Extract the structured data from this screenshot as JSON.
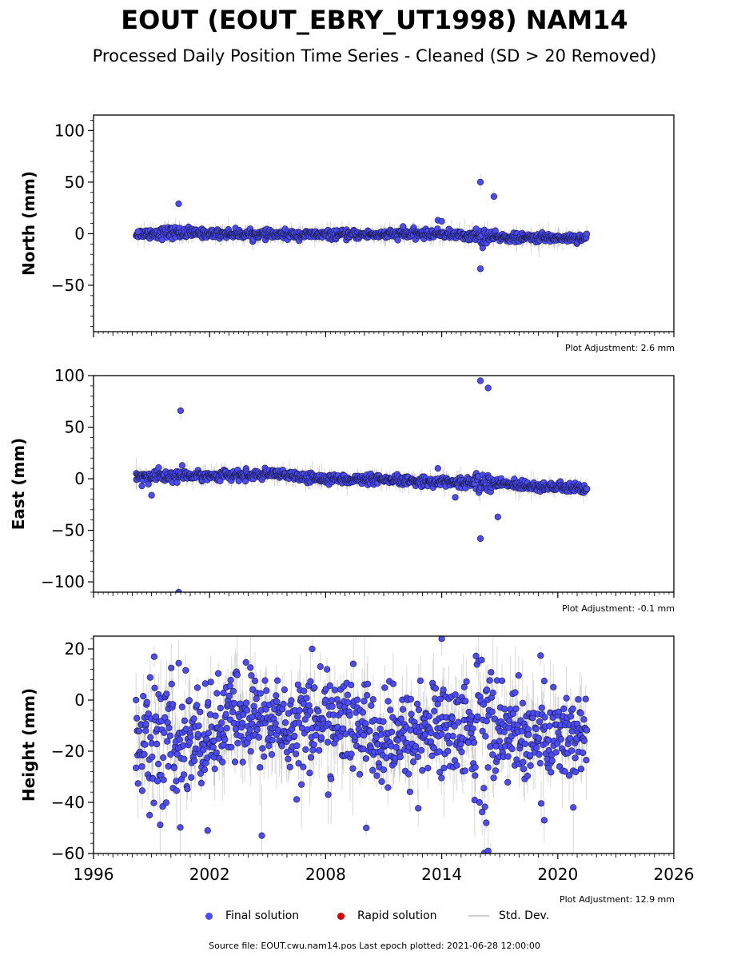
{
  "title": "EOUT (EOUT_EBRY_UT1998) NAM14",
  "subtitle": "Processed Daily Position Time Series - Cleaned (SD > 20 Removed)",
  "x_ticks": [
    "1996",
    "2002",
    "2008",
    "2014",
    "2020",
    "2026"
  ],
  "legend": {
    "final": "Final solution",
    "rapid": "Rapid solution",
    "sd": "Std. Dev."
  },
  "colors": {
    "final": "#4b4bfa",
    "rapid": "#dd0000",
    "sd": "#cfcfcf"
  },
  "source": "Source file: EOUT.cwu.nam14.pos  Last epoch plotted: 2021-06-28 12:00:00",
  "chart_data": [
    {
      "type": "scatter",
      "panel": "north",
      "ylabel": "North (mm)",
      "xlim": [
        1996,
        2026
      ],
      "ylim": [
        -95,
        115
      ],
      "yticks": [
        100,
        50,
        0,
        -50
      ],
      "adjustment": "Plot Adjustment: 2.6 mm",
      "grid": false,
      "profile": [
        [
          1998.2,
          0
        ],
        [
          2000,
          1
        ],
        [
          2005,
          -1
        ],
        [
          2010,
          -1
        ],
        [
          2014,
          0
        ],
        [
          2016,
          -3
        ],
        [
          2018,
          -4
        ],
        [
          2021.5,
          -4
        ]
      ],
      "noise": 2.0,
      "sd_noise": 4,
      "outliers": [
        [
          1998.3,
          2
        ],
        [
          2000.4,
          29
        ],
        [
          2016.0,
          50
        ],
        [
          2016.7,
          36
        ],
        [
          2016.0,
          -34
        ],
        [
          2013.8,
          13
        ],
        [
          2014.0,
          12
        ],
        [
          2012.0,
          7
        ]
      ]
    },
    {
      "type": "scatter",
      "panel": "east",
      "ylabel": "East (mm)",
      "xlim": [
        1996,
        2026
      ],
      "ylim": [
        -110,
        100
      ],
      "yticks": [
        100,
        50,
        0,
        -50,
        -100
      ],
      "adjustment": "Plot Adjustment: -0.1 mm",
      "grid": false,
      "profile": [
        [
          1998.2,
          2
        ],
        [
          2002,
          3
        ],
        [
          2005.5,
          4
        ],
        [
          2007,
          1
        ],
        [
          2010,
          -1
        ],
        [
          2014,
          -3
        ],
        [
          2016,
          -4
        ],
        [
          2018,
          -6
        ],
        [
          2021.5,
          -10
        ]
      ],
      "noise": 2.2,
      "sd_noise": 4,
      "outliers": [
        [
          2000.5,
          66
        ],
        [
          2000.4,
          -110
        ],
        [
          2016.0,
          95
        ],
        [
          2016.4,
          88
        ],
        [
          2016.0,
          -58
        ],
        [
          2016.9,
          -37
        ],
        [
          1999.0,
          -16
        ],
        [
          2014.7,
          -18
        ],
        [
          2013.8,
          10
        ],
        [
          1998.5,
          -7
        ]
      ]
    },
    {
      "type": "scatter",
      "panel": "height",
      "ylabel": "Height (mm)",
      "xlim": [
        1996,
        2026
      ],
      "ylim": [
        -60,
        25
      ],
      "yticks": [
        20,
        0,
        -20,
        -40,
        -60
      ],
      "adjustment": "Plot Adjustment: 12.9 mm",
      "grid": false,
      "profile": [
        [
          1998.2,
          -14
        ],
        [
          2000,
          -18
        ],
        [
          2002,
          -14
        ],
        [
          2003.5,
          -6
        ],
        [
          2006,
          -10
        ],
        [
          2008,
          -8
        ],
        [
          2010,
          -10
        ],
        [
          2011,
          -18
        ],
        [
          2013,
          -12
        ],
        [
          2016,
          -10
        ],
        [
          2018,
          -14
        ],
        [
          2021.5,
          -14
        ]
      ],
      "noise": 9.5,
      "sd_noise": 7,
      "outliers": [
        [
          1998.2,
          0
        ],
        [
          1998.5,
          -26
        ],
        [
          1998.7,
          -12
        ],
        [
          1998.9,
          -45
        ],
        [
          2001.9,
          -51
        ],
        [
          2004.7,
          -53
        ],
        [
          2010.1,
          -50
        ],
        [
          2016.3,
          -48
        ],
        [
          2016.4,
          -59
        ],
        [
          2014.0,
          24
        ],
        [
          2007.3,
          20
        ],
        [
          2020.8,
          -42
        ],
        [
          2019.3,
          -47
        ]
      ]
    }
  ]
}
